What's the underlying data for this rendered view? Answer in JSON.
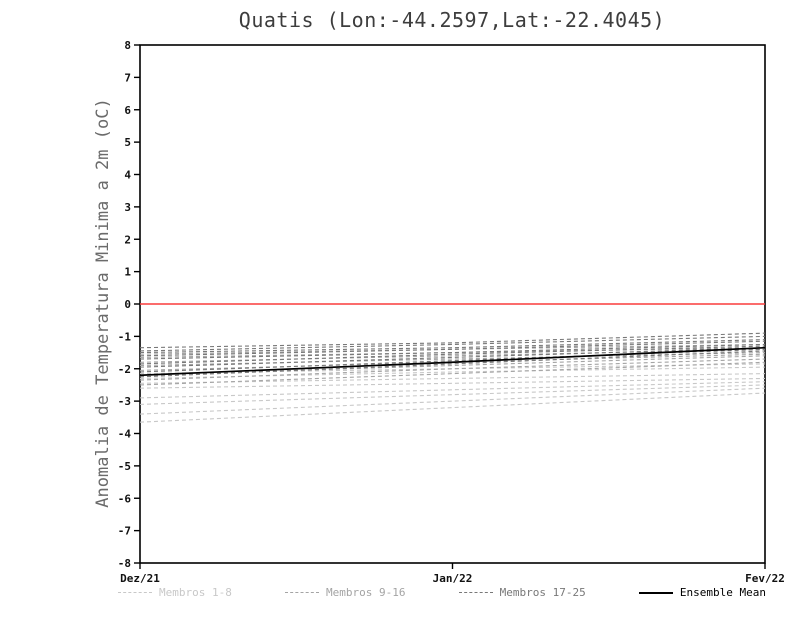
{
  "chart_data": {
    "type": "line",
    "title": "Quatis (Lon:-44.2597,Lat:-22.4045)",
    "ylabel": "Anomalia de Temperatura Minima a 2m (oC)",
    "x_categories": [
      "Dez/21",
      "Jan/22",
      "Fev/22"
    ],
    "ylim": [
      -8,
      8
    ],
    "y_ticks": [
      8,
      7,
      6,
      5,
      4,
      3,
      2,
      1,
      0,
      -1,
      -2,
      -3,
      -4,
      -5,
      -6,
      -7,
      -8
    ],
    "grid": false,
    "legend_position": "bottom",
    "zero_line": {
      "y": 0,
      "color": "#fa3c3c"
    },
    "groups": [
      {
        "label": "Membros 1-8",
        "color": "#c8c8c8",
        "style": "dashed"
      },
      {
        "label": "Membros 9-16",
        "color": "#a4a4a4",
        "style": "dashed"
      },
      {
        "label": "Membros 17-25",
        "color": "#787878",
        "style": "dashed"
      },
      {
        "label": "Ensemble Mean",
        "color": "#000000",
        "style": "solid"
      }
    ],
    "series": [
      {
        "name": "Membro 1",
        "group": 0,
        "values": [
          -3.65,
          -3.2,
          -2.75
        ]
      },
      {
        "name": "Membro 2",
        "group": 0,
        "values": [
          -3.4,
          -3.0,
          -2.6
        ]
      },
      {
        "name": "Membro 3",
        "group": 0,
        "values": [
          -3.1,
          -2.8,
          -2.5
        ]
      },
      {
        "name": "Membro 4",
        "group": 0,
        "values": [
          -2.9,
          -2.65,
          -2.4
        ]
      },
      {
        "name": "Membro 5",
        "group": 0,
        "values": [
          -2.6,
          -2.45,
          -2.3
        ]
      },
      {
        "name": "Membro 6",
        "group": 0,
        "values": [
          -2.45,
          -2.3,
          -2.15
        ]
      },
      {
        "name": "Membro 7",
        "group": 0,
        "values": [
          -2.3,
          -2.1,
          -1.95
        ]
      },
      {
        "name": "Membro 8",
        "group": 0,
        "values": [
          -2.15,
          -2.0,
          -1.85
        ]
      },
      {
        "name": "Membro 9",
        "group": 1,
        "values": [
          -2.5,
          -2.15,
          -1.8
        ]
      },
      {
        "name": "Membro 10",
        "group": 1,
        "values": [
          -2.35,
          -2.0,
          -1.7
        ]
      },
      {
        "name": "Membro 11",
        "group": 1,
        "values": [
          -2.2,
          -1.9,
          -1.6
        ]
      },
      {
        "name": "Membro 12",
        "group": 1,
        "values": [
          -2.05,
          -1.8,
          -1.55
        ]
      },
      {
        "name": "Membro 13",
        "group": 1,
        "values": [
          -1.9,
          -1.7,
          -1.5
        ]
      },
      {
        "name": "Membro 14",
        "group": 1,
        "values": [
          -1.8,
          -1.6,
          -1.4
        ]
      },
      {
        "name": "Membro 15",
        "group": 1,
        "values": [
          -1.65,
          -1.5,
          -1.35
        ]
      },
      {
        "name": "Membro 16",
        "group": 1,
        "values": [
          -1.55,
          -1.4,
          -1.25
        ]
      },
      {
        "name": "Membro 17",
        "group": 2,
        "values": [
          -2.25,
          -1.85,
          -1.45
        ]
      },
      {
        "name": "Membro 18",
        "group": 2,
        "values": [
          -2.1,
          -1.75,
          -1.4
        ]
      },
      {
        "name": "Membro 19",
        "group": 2,
        "values": [
          -1.95,
          -1.65,
          -1.35
        ]
      },
      {
        "name": "Membro 20",
        "group": 2,
        "values": [
          -1.85,
          -1.55,
          -1.3
        ]
      },
      {
        "name": "Membro 21",
        "group": 2,
        "values": [
          -1.7,
          -1.5,
          -1.25
        ]
      },
      {
        "name": "Membro 22",
        "group": 2,
        "values": [
          -1.6,
          -1.4,
          -1.15
        ]
      },
      {
        "name": "Membro 23",
        "group": 2,
        "values": [
          -1.5,
          -1.35,
          -1.1
        ]
      },
      {
        "name": "Membro 24",
        "group": 2,
        "values": [
          -1.45,
          -1.25,
          -1.0
        ]
      },
      {
        "name": "Membro 25",
        "group": 2,
        "values": [
          -1.35,
          -1.2,
          -0.9
        ]
      },
      {
        "name": "Ensemble Mean",
        "group": 3,
        "values": [
          -2.2,
          -1.8,
          -1.35
        ]
      }
    ]
  }
}
